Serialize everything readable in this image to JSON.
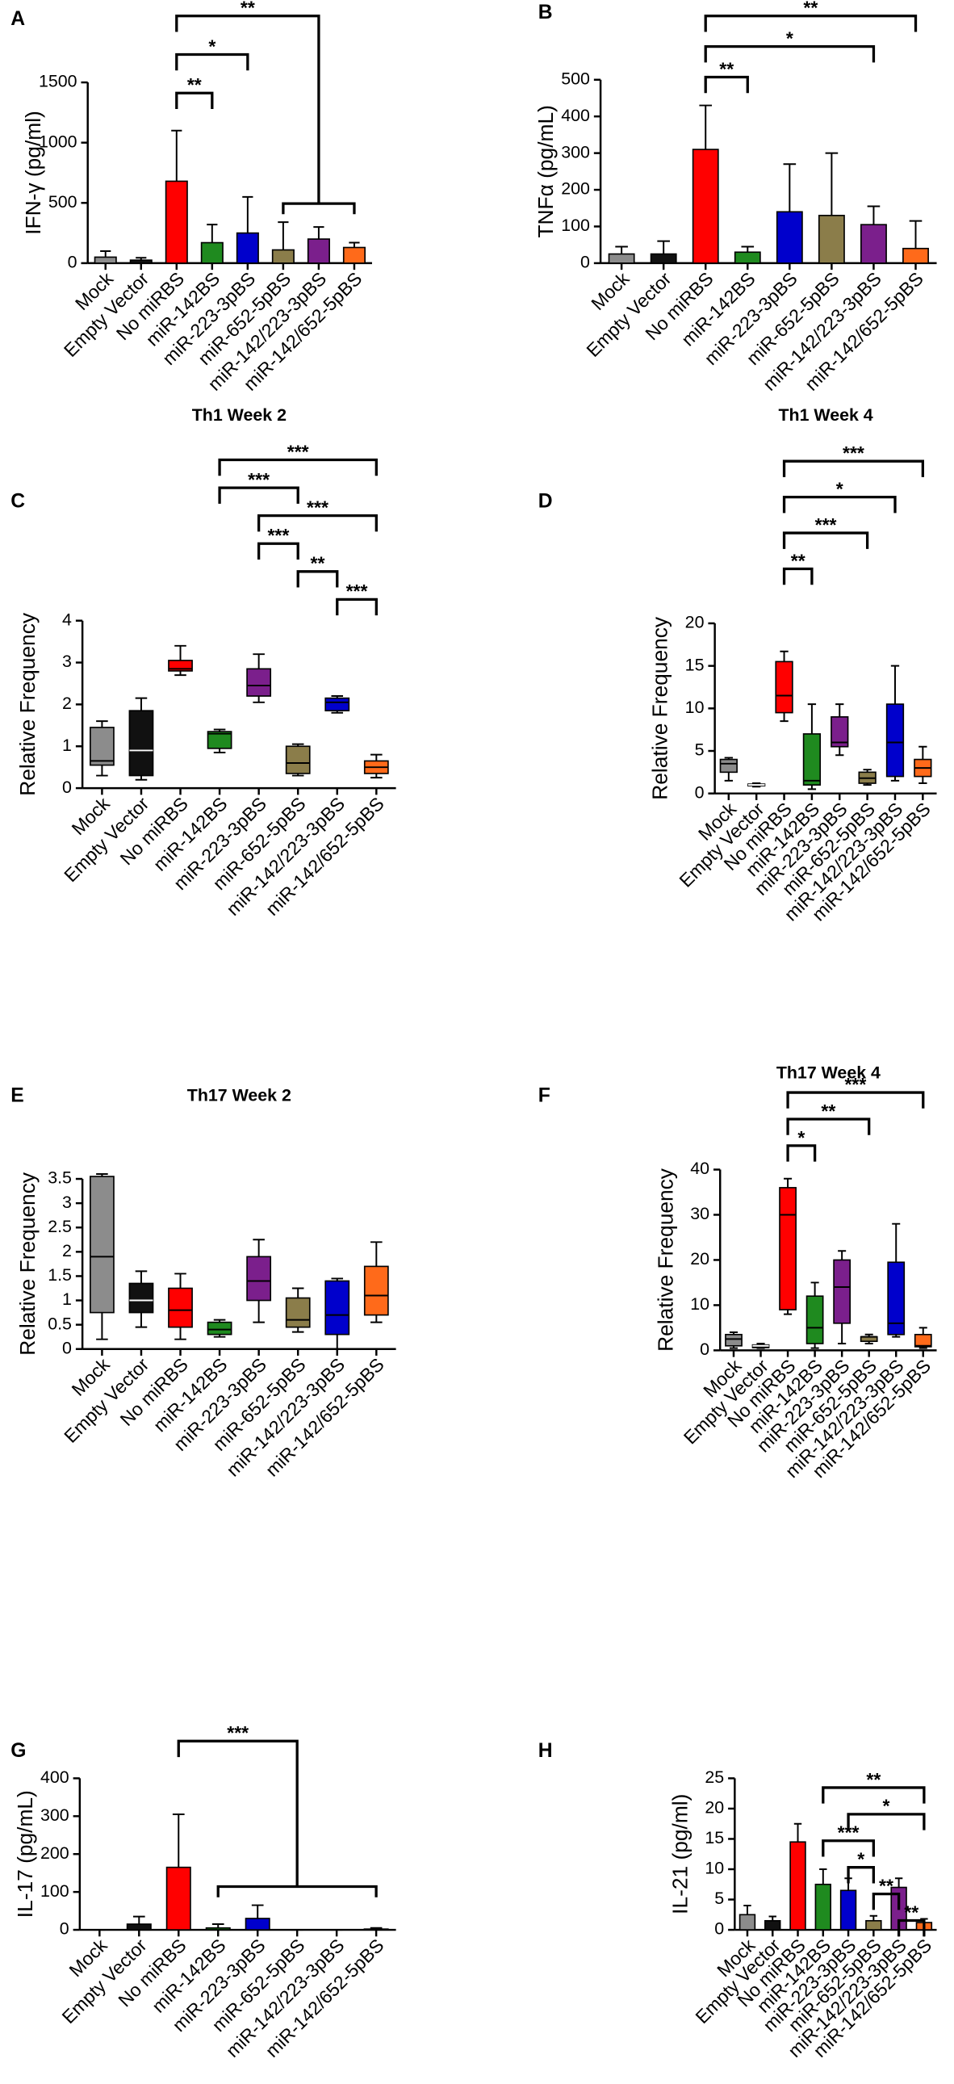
{
  "chart_data": [
    {
      "panel": "A",
      "type": "bar",
      "ylabel": "IFN-γ (pg/ml)",
      "categories": [
        "Mock",
        "Empty Vector",
        "No miRBS",
        "miR-142BS",
        "miR-223-3pBS",
        "miR-652-5pBS",
        "miR-142/223-3pBS",
        "miR-142/652-5pBS"
      ],
      "colors": [
        "#8c8c8c",
        "#111111",
        "#ff0000",
        "#1f8a1f",
        "#0000cc",
        "#8b7d4a",
        "#7b1f8c",
        "#ff6a1a"
      ],
      "values": [
        50,
        25,
        680,
        170,
        250,
        110,
        200,
        130
      ],
      "errors": [
        50,
        20,
        420,
        150,
        300,
        230,
        100,
        40
      ],
      "ylim": [
        0,
        1500
      ],
      "yticks": [
        0,
        500,
        1000,
        1500
      ],
      "annotations": [
        {
          "label": "**",
          "from": "No miRBS",
          "to": [
            "miR-652-5pBS",
            "miR-142/223-3pBS",
            "miR-142/652-5pBS"
          ]
        },
        {
          "label": "*",
          "from": "No miRBS",
          "to": "miR-223-3pBS"
        },
        {
          "label": "**",
          "from": "No miRBS",
          "to": "miR-142BS"
        }
      ]
    },
    {
      "panel": "B",
      "type": "bar",
      "ylabel": "TNFα (pg/mL)",
      "categories": [
        "Mock",
        "Empty Vector",
        "No miRBS",
        "miR-142BS",
        "miR-223-3pBS",
        "miR-652-5pBS",
        "miR-142/223-3pBS",
        "miR-142/652-5pBS"
      ],
      "colors": [
        "#8c8c8c",
        "#111111",
        "#ff0000",
        "#1f8a1f",
        "#0000cc",
        "#8b7d4a",
        "#7b1f8c",
        "#ff6a1a"
      ],
      "values": [
        25,
        25,
        310,
        30,
        140,
        130,
        105,
        40
      ],
      "errors": [
        20,
        35,
        120,
        15,
        130,
        170,
        50,
        75
      ],
      "ylim": [
        0,
        500
      ],
      "yticks": [
        0,
        100,
        200,
        300,
        400,
        500
      ],
      "annotations": [
        {
          "label": "**",
          "from": "No miRBS",
          "to": "miR-142/652-5pBS"
        },
        {
          "label": "*",
          "from": "No miRBS",
          "to": "miR-142/223-3pBS"
        },
        {
          "label": "**",
          "from": "No miRBS",
          "to": "miR-142BS"
        }
      ]
    },
    {
      "panel": "C",
      "type": "box",
      "title": "Th1 Week 2",
      "ylabel": "Relative Frequency",
      "categories": [
        "Mock",
        "Empty Vector",
        "No miRBS",
        "miR-142BS",
        "miR-223-3pBS",
        "miR-652-5pBS",
        "miR-142/223-3pBS",
        "miR-142/652-5pBS"
      ],
      "colors": [
        "#8c8c8c",
        "#111111",
        "#ff0000",
        "#1f8a1f",
        "#7b1f8c",
        "#8b7d4a",
        "#0000cc",
        "#ff6a1a"
      ],
      "min": [
        0.3,
        0.2,
        2.7,
        0.85,
        2.05,
        0.3,
        1.8,
        0.25
      ],
      "q1": [
        0.55,
        0.3,
        2.8,
        0.95,
        2.2,
        0.35,
        1.85,
        0.35
      ],
      "median": [
        0.65,
        0.9,
        2.85,
        1.3,
        2.45,
        0.6,
        2.05,
        0.5
      ],
      "q3": [
        1.45,
        1.85,
        3.05,
        1.35,
        2.85,
        1.0,
        2.15,
        0.65
      ],
      "max": [
        1.6,
        2.15,
        3.4,
        1.4,
        3.2,
        1.05,
        2.2,
        0.8
      ],
      "ylim": [
        0,
        4
      ],
      "yticks": [
        0,
        1,
        2,
        3,
        4
      ],
      "annotations": [
        {
          "label": "***",
          "from": "miR-142BS",
          "to": "miR-142/652-5pBS"
        },
        {
          "label": "***",
          "from": "miR-142BS",
          "to": "miR-652-5pBS"
        },
        {
          "label": "***",
          "from": "miR-223-3pBS",
          "to": "miR-142/652-5pBS"
        },
        {
          "label": "***",
          "from": "miR-223-3pBS",
          "to": "miR-652-5pBS"
        },
        {
          "label": "**",
          "from": "miR-652-5pBS",
          "to": "miR-142/223-3pBS"
        },
        {
          "label": "***",
          "from": "miR-142/223-3pBS",
          "to": "miR-142/652-5pBS"
        }
      ]
    },
    {
      "panel": "D",
      "type": "box",
      "title": "Th1 Week 4",
      "ylabel": "Relative Frequency",
      "categories": [
        "Mock",
        "Empty Vector",
        "No miRBS",
        "miR-142BS",
        "miR-223-3pBS",
        "miR-652-5pBS",
        "miR-142/223-3pBS",
        "miR-142/652-5pBS"
      ],
      "colors": [
        "#8c8c8c",
        "#111111",
        "#ff0000",
        "#1f8a1f",
        "#7b1f8c",
        "#8b7d4a",
        "#0000cc",
        "#ff6a1a"
      ],
      "min": [
        1.5,
        0.8,
        8.5,
        0.5,
        4.5,
        1,
        1.5,
        1.2
      ],
      "q1": [
        2.5,
        0.9,
        9.5,
        1,
        5.5,
        1.2,
        2,
        2
      ],
      "median": [
        3.5,
        1,
        11.5,
        1.5,
        6,
        1.8,
        6,
        3
      ],
      "q3": [
        4,
        1.1,
        15.5,
        7,
        9,
        2.5,
        10.5,
        4
      ],
      "max": [
        4.2,
        1.2,
        16.7,
        10.5,
        10.5,
        2.8,
        15,
        5.5
      ],
      "ylim": [
        0,
        20
      ],
      "yticks": [
        0,
        5,
        10,
        15,
        20
      ],
      "annotations": [
        {
          "label": "***",
          "from": "No miRBS",
          "to": "miR-142/652-5pBS"
        },
        {
          "label": "*",
          "from": "No miRBS",
          "to": "miR-142/223-3pBS"
        },
        {
          "label": "***",
          "from": "No miRBS",
          "to": "miR-652-5pBS"
        },
        {
          "label": "**",
          "from": "No miRBS",
          "to": "miR-142BS"
        }
      ]
    },
    {
      "panel": "E",
      "type": "box",
      "title": "Th17 Week 2",
      "ylabel": "Relative Frequency",
      "categories": [
        "Mock",
        "Empty Vector",
        "No miRBS",
        "miR-142BS",
        "miR-223-3pBS",
        "miR-652-5pBS",
        "miR-142/223-3pBS",
        "miR-142/652-5pBS"
      ],
      "colors": [
        "#8c8c8c",
        "#111111",
        "#ff0000",
        "#1f8a1f",
        "#7b1f8c",
        "#8b7d4a",
        "#0000cc",
        "#ff6a1a"
      ],
      "min": [
        0.2,
        0.45,
        0.2,
        0.25,
        0.55,
        0.35,
        0,
        0.55
      ],
      "q1": [
        0.75,
        0.75,
        0.45,
        0.3,
        1.0,
        0.45,
        0.3,
        0.7
      ],
      "median": [
        1.9,
        1.0,
        0.8,
        0.4,
        1.4,
        0.6,
        0.7,
        1.1
      ],
      "q3": [
        3.55,
        1.35,
        1.25,
        0.55,
        1.9,
        1.05,
        1.4,
        1.7
      ],
      "max": [
        3.6,
        1.6,
        1.55,
        0.6,
        2.25,
        1.25,
        1.45,
        2.2
      ],
      "ylim": [
        0,
        3.5
      ],
      "yticks": [
        0,
        0.5,
        1,
        1.5,
        2,
        2.5,
        3,
        3.5
      ],
      "annotations": []
    },
    {
      "panel": "F",
      "type": "box",
      "title": "Th17 Week 4",
      "ylabel": "Relative Frequency",
      "categories": [
        "Mock",
        "Empty Vector",
        "No miRBS",
        "miR-142BS",
        "miR-223-3pBS",
        "miR-652-5pBS",
        "miR-142/223-3pBS",
        "miR-142/652-5pBS"
      ],
      "colors": [
        "#8c8c8c",
        "#111111",
        "#ff0000",
        "#1f8a1f",
        "#7b1f8c",
        "#8b7d4a",
        "#0000cc",
        "#ff6a1a"
      ],
      "min": [
        0.5,
        0.5,
        8,
        0.5,
        1.5,
        1.5,
        3,
        0.5
      ],
      "q1": [
        1,
        0.6,
        9,
        1.5,
        6,
        2,
        3.5,
        0.8
      ],
      "median": [
        2.5,
        1,
        30,
        5,
        14,
        3,
        6,
        1
      ],
      "q3": [
        3.5,
        1.2,
        36,
        12,
        20,
        3,
        19.5,
        3.5
      ],
      "max": [
        4,
        1.5,
        38,
        15,
        22,
        3.5,
        28,
        5
      ],
      "ylim": [
        0,
        40
      ],
      "yticks": [
        0,
        10,
        20,
        30,
        40
      ],
      "annotations": [
        {
          "label": "***",
          "from": "No miRBS",
          "to": "miR-142/652-5pBS"
        },
        {
          "label": "**",
          "from": "No miRBS",
          "to": "miR-652-5pBS"
        },
        {
          "label": "*",
          "from": "No miRBS",
          "to": "miR-142BS"
        }
      ]
    },
    {
      "panel": "G",
      "type": "bar",
      "ylabel": "IL-17 (pg/mL)",
      "categories": [
        "Mock",
        "Empty Vector",
        "No miRBS",
        "miR-142BS",
        "miR-223-3pBS",
        "miR-652-5pBS",
        "miR-142/223-3pBS",
        "miR-142/652-5pBS"
      ],
      "colors": [
        "#8c8c8c",
        "#111111",
        "#ff0000",
        "#1f8a1f",
        "#0000cc",
        "#8b7d4a",
        "#7b1f8c",
        "#ff6a1a"
      ],
      "values": [
        0,
        15,
        165,
        5,
        30,
        0,
        0,
        2
      ],
      "errors": [
        0,
        20,
        140,
        10,
        35,
        0,
        0,
        3
      ],
      "ylim": [
        0,
        400
      ],
      "yticks": [
        0,
        100,
        200,
        300,
        400
      ],
      "annotations": [
        {
          "label": "***",
          "from": "No miRBS",
          "to": [
            "miR-142BS",
            "miR-223-3pBS",
            "miR-652-5pBS",
            "miR-142/223-3pBS",
            "miR-142/652-5pBS"
          ]
        }
      ]
    },
    {
      "panel": "H",
      "type": "bar",
      "ylabel": "IL-21  (pg/ml)",
      "categories": [
        "Mock",
        "Empty Vector",
        "No miRBS",
        "miR-142BS",
        "miR-223-3pBS",
        "miR-652-5pBS",
        "miR-142/223-3pBS",
        "miR-142/652-5pBS"
      ],
      "colors": [
        "#8c8c8c",
        "#111111",
        "#ff0000",
        "#1f8a1f",
        "#0000cc",
        "#8b7d4a",
        "#7b1f8c",
        "#ff6a1a"
      ],
      "values": [
        2.5,
        1.5,
        14.5,
        7.5,
        6.5,
        1.5,
        7,
        1.2
      ],
      "errors": [
        1.5,
        0.7,
        3,
        2.5,
        2,
        0.8,
        1.5,
        0.6
      ],
      "ylim": [
        0,
        25
      ],
      "yticks": [
        0,
        5,
        10,
        15,
        20,
        25
      ],
      "annotations": [
        {
          "label": "**",
          "from": "miR-142BS",
          "to": "miR-142/652-5pBS"
        },
        {
          "label": "*",
          "from": "miR-223-3pBS",
          "to": "miR-142/652-5pBS"
        },
        {
          "label": "***",
          "from": "miR-142BS",
          "to": "miR-652-5pBS"
        },
        {
          "label": "*",
          "from": "miR-223-3pBS",
          "to": "miR-652-5pBS"
        },
        {
          "label": "**",
          "from": "miR-652-5pBS",
          "to": "miR-142/223-3pBS"
        },
        {
          "label": "**",
          "from": "miR-142/223-3pBS",
          "to": "miR-142/652-5pBS"
        }
      ]
    }
  ]
}
